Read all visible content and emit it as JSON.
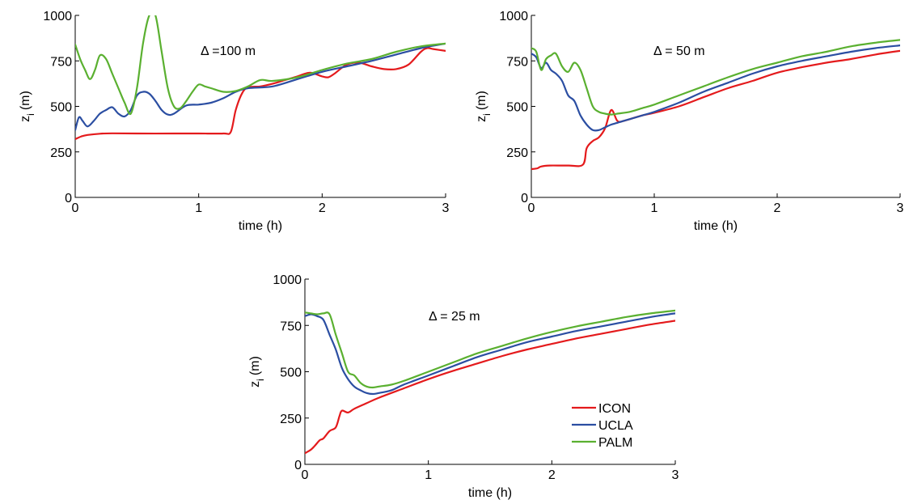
{
  "chart_data": [
    {
      "type": "line",
      "title": "",
      "annotation": "Δ =100 m",
      "xlabel": "time (h)",
      "ylabel": "z",
      "ylabel_sub": "i",
      "ylabel_unit": "(m)",
      "xlim": [
        0,
        3
      ],
      "ylim": [
        0,
        1000
      ],
      "xticks": [
        "0",
        "1",
        "2",
        "3"
      ],
      "yticks": [
        "0",
        "250",
        "500",
        "750",
        "1000"
      ],
      "grid": false,
      "series": [
        {
          "name": "ICON",
          "color": "#e41a1c",
          "x": [
            0,
            0.05,
            0.1,
            0.2,
            0.3,
            0.5,
            0.8,
            1.0,
            1.2,
            1.26,
            1.3,
            1.35,
            1.4,
            1.5,
            1.6,
            1.7,
            1.8,
            1.9,
            2.0,
            2.05,
            2.1,
            2.2,
            2.3,
            2.4,
            2.5,
            2.6,
            2.7,
            2.8,
            2.85,
            2.9,
            3.0
          ],
          "y": [
            320,
            335,
            343,
            350,
            352,
            351,
            351,
            351,
            351,
            360,
            480,
            570,
            605,
            610,
            625,
            645,
            665,
            685,
            665,
            660,
            680,
            730,
            740,
            720,
            705,
            705,
            730,
            800,
            820,
            815,
            805
          ]
        },
        {
          "name": "UCLA",
          "color": "#2b4ea2",
          "x": [
            0,
            0.03,
            0.06,
            0.1,
            0.15,
            0.2,
            0.25,
            0.3,
            0.35,
            0.4,
            0.45,
            0.5,
            0.55,
            0.6,
            0.65,
            0.7,
            0.75,
            0.8,
            0.9,
            1.0,
            1.1,
            1.2,
            1.3,
            1.4,
            1.6,
            1.8,
            2.0,
            2.2,
            2.4,
            2.6,
            2.8,
            3.0
          ],
          "y": [
            370,
            440,
            420,
            390,
            420,
            460,
            480,
            495,
            460,
            445,
            480,
            560,
            580,
            570,
            530,
            480,
            455,
            460,
            505,
            510,
            520,
            545,
            580,
            600,
            610,
            650,
            690,
            720,
            750,
            785,
            820,
            845
          ]
        },
        {
          "name": "PALM",
          "color": "#5ab030",
          "x": [
            0,
            0.04,
            0.08,
            0.12,
            0.16,
            0.2,
            0.25,
            0.3,
            0.35,
            0.4,
            0.45,
            0.5,
            0.55,
            0.6,
            0.65,
            0.7,
            0.75,
            0.8,
            0.85,
            0.9,
            0.95,
            1.0,
            1.05,
            1.1,
            1.2,
            1.3,
            1.4,
            1.5,
            1.6,
            1.8,
            2.0,
            2.2,
            2.4,
            2.6,
            2.8,
            3.0
          ],
          "y": [
            840,
            760,
            700,
            650,
            700,
            780,
            760,
            680,
            600,
            520,
            460,
            600,
            850,
            1000,
            1000,
            800,
            600,
            500,
            490,
            530,
            580,
            620,
            610,
            600,
            580,
            585,
            610,
            645,
            640,
            660,
            700,
            735,
            760,
            800,
            830,
            845
          ]
        }
      ]
    },
    {
      "type": "line",
      "title": "",
      "annotation": "Δ = 50 m",
      "xlabel": "time (h)",
      "ylabel": "z",
      "ylabel_sub": "i",
      "ylabel_unit": "(m)",
      "xlim": [
        0,
        3
      ],
      "ylim": [
        0,
        1000
      ],
      "xticks": [
        "0",
        "1",
        "2",
        "3"
      ],
      "yticks": [
        "0",
        "250",
        "500",
        "750",
        "1000"
      ],
      "grid": false,
      "series": [
        {
          "name": "ICON",
          "color": "#e41a1c",
          "x": [
            0,
            0.05,
            0.08,
            0.15,
            0.3,
            0.42,
            0.45,
            0.5,
            0.55,
            0.6,
            0.65,
            0.7,
            0.75,
            0.8,
            0.9,
            1.0,
            1.2,
            1.4,
            1.6,
            1.8,
            2.0,
            2.2,
            2.4,
            2.6,
            2.8,
            3.0
          ],
          "y": [
            155,
            160,
            170,
            175,
            175,
            180,
            270,
            310,
            330,
            380,
            480,
            420,
            420,
            430,
            450,
            465,
            500,
            550,
            600,
            640,
            685,
            715,
            740,
            760,
            785,
            805
          ]
        },
        {
          "name": "UCLA",
          "color": "#2b4ea2",
          "x": [
            0,
            0.04,
            0.08,
            0.12,
            0.16,
            0.2,
            0.25,
            0.3,
            0.35,
            0.4,
            0.45,
            0.5,
            0.55,
            0.6,
            0.65,
            0.7,
            0.8,
            0.9,
            1.0,
            1.2,
            1.4,
            1.6,
            1.8,
            2.0,
            2.2,
            2.4,
            2.6,
            2.8,
            3.0
          ],
          "y": [
            790,
            770,
            710,
            740,
            700,
            680,
            640,
            560,
            530,
            450,
            400,
            370,
            370,
            385,
            400,
            410,
            430,
            450,
            470,
            520,
            580,
            630,
            680,
            720,
            750,
            775,
            800,
            820,
            835
          ]
        },
        {
          "name": "PALM",
          "color": "#5ab030",
          "x": [
            0,
            0.04,
            0.08,
            0.12,
            0.16,
            0.2,
            0.25,
            0.3,
            0.35,
            0.4,
            0.45,
            0.5,
            0.55,
            0.6,
            0.65,
            0.7,
            0.8,
            0.9,
            1.0,
            1.2,
            1.4,
            1.6,
            1.8,
            2.0,
            2.2,
            2.4,
            2.6,
            2.8,
            3.0
          ],
          "y": [
            820,
            800,
            700,
            760,
            780,
            790,
            720,
            690,
            740,
            700,
            600,
            500,
            470,
            460,
            455,
            460,
            470,
            490,
            510,
            560,
            610,
            660,
            705,
            740,
            775,
            800,
            830,
            850,
            865
          ]
        }
      ]
    },
    {
      "type": "line",
      "title": "",
      "annotation": "Δ = 25 m",
      "xlabel": "time (h)",
      "ylabel": "z",
      "ylabel_sub": "i",
      "ylabel_unit": "(m)",
      "xlim": [
        0,
        3
      ],
      "ylim": [
        0,
        1000
      ],
      "xticks": [
        "0",
        "1",
        "2",
        "3"
      ],
      "yticks": [
        "0",
        "250",
        "500",
        "750",
        "1000"
      ],
      "grid": false,
      "legend": "bottom-right",
      "series": [
        {
          "name": "ICON",
          "color": "#e41a1c",
          "x": [
            0,
            0.05,
            0.08,
            0.12,
            0.15,
            0.2,
            0.25,
            0.28,
            0.3,
            0.35,
            0.4,
            0.5,
            0.6,
            0.8,
            1.0,
            1.2,
            1.4,
            1.6,
            1.8,
            2.0,
            2.2,
            2.4,
            2.6,
            2.8,
            3.0
          ],
          "y": [
            60,
            80,
            100,
            130,
            140,
            180,
            200,
            260,
            290,
            280,
            300,
            330,
            360,
            410,
            460,
            505,
            545,
            585,
            620,
            650,
            680,
            705,
            730,
            755,
            775
          ]
        },
        {
          "name": "UCLA",
          "color": "#2b4ea2",
          "x": [
            0,
            0.05,
            0.1,
            0.15,
            0.2,
            0.25,
            0.3,
            0.35,
            0.4,
            0.45,
            0.5,
            0.55,
            0.6,
            0.7,
            0.8,
            1.0,
            1.2,
            1.4,
            1.6,
            1.8,
            2.0,
            2.2,
            2.4,
            2.6,
            2.8,
            3.0
          ],
          "y": [
            800,
            810,
            800,
            780,
            700,
            620,
            520,
            460,
            420,
            400,
            385,
            380,
            385,
            400,
            430,
            480,
            530,
            580,
            620,
            660,
            690,
            720,
            745,
            770,
            795,
            815
          ]
        },
        {
          "name": "PALM",
          "color": "#5ab030",
          "x": [
            0,
            0.05,
            0.1,
            0.15,
            0.2,
            0.25,
            0.3,
            0.35,
            0.4,
            0.45,
            0.5,
            0.55,
            0.6,
            0.7,
            0.8,
            1.0,
            1.2,
            1.4,
            1.6,
            1.8,
            2.0,
            2.2,
            2.4,
            2.6,
            2.8,
            3.0
          ],
          "y": [
            820,
            815,
            810,
            815,
            810,
            700,
            600,
            500,
            480,
            440,
            420,
            415,
            420,
            430,
            450,
            500,
            550,
            600,
            640,
            680,
            715,
            745,
            770,
            795,
            815,
            830
          ]
        }
      ]
    }
  ]
}
